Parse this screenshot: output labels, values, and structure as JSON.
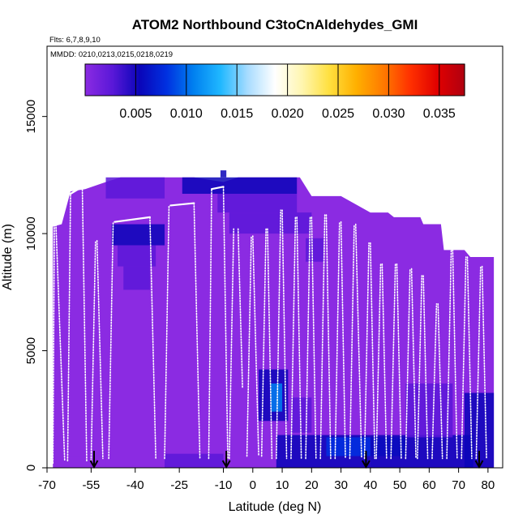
{
  "chart_data": {
    "type": "heatmap",
    "title": "ATOM2 Northbound C3toCnAldehydes_GMI",
    "flights_label": "Flts: 6,7,8,9,10",
    "dates_label": "MMDD: 0210,0213,0215,0218,0219",
    "xlabel": "Latitude (deg N)",
    "ylabel": "Altitude (m)",
    "xlim": [
      -70,
      85
    ],
    "ylim": [
      0,
      18000
    ],
    "x_ticks": [
      -70,
      -55,
      -40,
      -25,
      -10,
      0,
      10,
      20,
      30,
      40,
      50,
      60,
      70,
      80
    ],
    "y_ticks": [
      0,
      5000,
      10000,
      15000
    ],
    "colorbar": {
      "min": 0.0,
      "max": 0.0375,
      "ticks": [
        0.005,
        0.01,
        0.015,
        0.02,
        0.025,
        0.03,
        0.035
      ],
      "tick_labels": [
        "0.005",
        "0.010",
        "0.015",
        "0.020",
        "0.025",
        "0.030",
        "0.035"
      ],
      "colors": [
        "#8B2BE2",
        "#5A18D8",
        "#0A05B8",
        "#0030E0",
        "#0080F0",
        "#20B8FF",
        "#A8DCFF",
        "#FFFFFF",
        "#FFF6B0",
        "#FFE040",
        "#FFB000",
        "#FF7A00",
        "#FF3000",
        "#E00000",
        "#B00010"
      ]
    },
    "background_value": 0.0015,
    "curtain_top": [
      [
        -68,
        10300
      ],
      [
        -65,
        10400
      ],
      [
        -62,
        11800
      ],
      [
        -57,
        11900
      ],
      [
        -50,
        12200
      ],
      [
        -45,
        12400
      ],
      [
        -20,
        12400
      ],
      [
        -10,
        12200
      ],
      [
        -5,
        12400
      ],
      [
        16,
        12400
      ],
      [
        20,
        11600
      ],
      [
        30,
        11600
      ],
      [
        40,
        10900
      ],
      [
        46,
        10900
      ],
      [
        48,
        10700
      ],
      [
        57,
        10700
      ],
      [
        58,
        10400
      ],
      [
        64,
        10400
      ],
      [
        65,
        9300
      ],
      [
        72,
        9300
      ],
      [
        74,
        9000
      ],
      [
        82,
        9000
      ]
    ],
    "cells": [
      {
        "x": [
          -48,
          -30
        ],
        "y": [
          9500,
          10400
        ],
        "v": 0.0055
      },
      {
        "x": [
          -46,
          -33
        ],
        "y": [
          8600,
          9500
        ],
        "v": 0.0045
      },
      {
        "x": [
          -44,
          -35
        ],
        "y": [
          7600,
          8600
        ],
        "v": 0.0035
      },
      {
        "x": [
          -50,
          -30
        ],
        "y": [
          11500,
          12400
        ],
        "v": 0.0035
      },
      {
        "x": [
          -24,
          15
        ],
        "y": [
          11700,
          12400
        ],
        "v": 0.006
      },
      {
        "x": [
          -12,
          15
        ],
        "y": [
          10900,
          11700
        ],
        "v": 0.0045
      },
      {
        "x": [
          -8,
          20
        ],
        "y": [
          10000,
          10900
        ],
        "v": 0.003
      },
      {
        "x": [
          18,
          24
        ],
        "y": [
          8800,
          9800
        ],
        "v": 0.004
      },
      {
        "x": [
          -11,
          -9
        ],
        "y": [
          12400,
          12700
        ],
        "v": 0.007
      },
      {
        "x": [
          2,
          12
        ],
        "y": [
          2000,
          4200
        ],
        "v": 0.005
      },
      {
        "x": [
          6,
          10
        ],
        "y": [
          2400,
          3600
        ],
        "v": 0.012
      },
      {
        "x": [
          13,
          20
        ],
        "y": [
          1500,
          3000
        ],
        "v": 0.004
      },
      {
        "x": [
          8,
          40
        ],
        "y": [
          0,
          1400
        ],
        "v": 0.006
      },
      {
        "x": [
          25,
          52
        ],
        "y": [
          500,
          1300
        ],
        "v": 0.0075
      },
      {
        "x": [
          40,
          75
        ],
        "y": [
          0,
          1400
        ],
        "v": 0.0055
      },
      {
        "x": [
          52,
          68
        ],
        "y": [
          1300,
          3600
        ],
        "v": 0.0045
      },
      {
        "x": [
          72,
          82
        ],
        "y": [
          0,
          3200
        ],
        "v": 0.005
      },
      {
        "x": [
          -30,
          -10
        ],
        "y": [
          0,
          600
        ],
        "v": 0.0025
      },
      {
        "x": [
          -65,
          -50
        ],
        "y": [
          0,
          500
        ],
        "v": 0.002
      }
    ],
    "flight_tracks": [
      {
        "x": [
          -68,
          -67.5
        ],
        "y": [
          200,
          10500
        ]
      },
      {
        "x": [
          -67,
          -64
        ],
        "y": [
          10500,
          300
        ]
      },
      {
        "x": [
          -63,
          -62
        ],
        "y": [
          300,
          11700
        ]
      },
      {
        "x": [
          -62,
          -58
        ],
        "y": [
          11700,
          12000
        ]
      },
      {
        "x": [
          -58,
          -56.5
        ],
        "y": [
          12000,
          300
        ]
      },
      {
        "x": [
          -55,
          -53.5
        ],
        "y": [
          300,
          9700
        ]
      },
      {
        "x": [
          -53,
          -51
        ],
        "y": [
          9700,
          400
        ]
      },
      {
        "x": [
          -49,
          -47.5
        ],
        "y": [
          400,
          10500
        ]
      },
      {
        "x": [
          -47,
          -35
        ],
        "y": [
          10500,
          10700
        ]
      },
      {
        "x": [
          -35,
          -33
        ],
        "y": [
          10700,
          400
        ]
      },
      {
        "x": [
          -30,
          -28.5
        ],
        "y": [
          400,
          11200
        ]
      },
      {
        "x": [
          -28,
          -20
        ],
        "y": [
          11200,
          11300
        ]
      },
      {
        "x": [
          -20,
          -18
        ],
        "y": [
          11300,
          400
        ]
      },
      {
        "x": [
          -15,
          -14
        ],
        "y": [
          400,
          11900
        ]
      },
      {
        "x": [
          -14,
          -10
        ],
        "y": [
          11900,
          12000
        ]
      },
      {
        "x": [
          -10,
          -8.5
        ],
        "y": [
          12000,
          400
        ]
      },
      {
        "x": [
          -8,
          -6.5
        ],
        "y": [
          400,
          10200
        ]
      },
      {
        "x": [
          -5,
          -3.5
        ],
        "y": [
          10200,
          3400
        ]
      },
      {
        "x": [
          -2,
          -0.5
        ],
        "y": [
          500,
          9900
        ]
      },
      {
        "x": [
          0,
          2
        ],
        "y": [
          9900,
          500
        ]
      },
      {
        "x": [
          3,
          4.5
        ],
        "y": [
          500,
          10200
        ]
      },
      {
        "x": [
          5,
          6.5
        ],
        "y": [
          10200,
          400
        ]
      },
      {
        "x": [
          8,
          9.5
        ],
        "y": [
          400,
          11000
        ]
      },
      {
        "x": [
          10,
          11.5
        ],
        "y": [
          11000,
          400
        ]
      },
      {
        "x": [
          13,
          14.5
        ],
        "y": [
          400,
          10700
        ]
      },
      {
        "x": [
          15,
          16.5
        ],
        "y": [
          10700,
          400
        ]
      },
      {
        "x": [
          18,
          19.5
        ],
        "y": [
          400,
          10700
        ]
      },
      {
        "x": [
          20,
          21.5
        ],
        "y": [
          10700,
          400
        ]
      },
      {
        "x": [
          23,
          24.5
        ],
        "y": [
          400,
          10800
        ]
      },
      {
        "x": [
          25,
          26.5
        ],
        "y": [
          10800,
          400
        ]
      },
      {
        "x": [
          28,
          29.5
        ],
        "y": [
          400,
          10500
        ]
      },
      {
        "x": [
          30,
          31.5
        ],
        "y": [
          10500,
          400
        ]
      },
      {
        "x": [
          33,
          34.5
        ],
        "y": [
          400,
          10400
        ]
      },
      {
        "x": [
          35,
          37
        ],
        "y": [
          10400,
          400
        ]
      },
      {
        "x": [
          38,
          39.5
        ],
        "y": [
          400,
          9600
        ]
      },
      {
        "x": [
          40,
          41.5
        ],
        "y": [
          9600,
          400
        ]
      },
      {
        "x": [
          42,
          43.5
        ],
        "y": [
          400,
          8700
        ]
      },
      {
        "x": [
          44,
          45.5
        ],
        "y": [
          8700,
          400
        ]
      },
      {
        "x": [
          47,
          48.5
        ],
        "y": [
          400,
          8700
        ]
      },
      {
        "x": [
          49,
          50.5
        ],
        "y": [
          8700,
          400
        ]
      },
      {
        "x": [
          52,
          53.5
        ],
        "y": [
          400,
          8500
        ]
      },
      {
        "x": [
          54,
          55.5
        ],
        "y": [
          8500,
          400
        ]
      },
      {
        "x": [
          56,
          57.5
        ],
        "y": [
          400,
          8200
        ]
      },
      {
        "x": [
          58,
          59.5
        ],
        "y": [
          8200,
          400
        ]
      },
      {
        "x": [
          61,
          62.5
        ],
        "y": [
          400,
          7000
        ]
      },
      {
        "x": [
          63,
          64.5
        ],
        "y": [
          7000,
          400
        ]
      },
      {
        "x": [
          66,
          67.5
        ],
        "y": [
          400,
          9300
        ]
      },
      {
        "x": [
          68,
          69.5
        ],
        "y": [
          9300,
          400
        ]
      },
      {
        "x": [
          71,
          72.5
        ],
        "y": [
          400,
          9000
        ]
      },
      {
        "x": [
          73,
          74.5
        ],
        "y": [
          9000,
          400
        ]
      },
      {
        "x": [
          76,
          77.5
        ],
        "y": [
          400,
          8600
        ]
      },
      {
        "x": [
          78,
          79.5
        ],
        "y": [
          8600,
          400
        ]
      }
    ],
    "arrows_x": [
      -54,
      -9,
      38.5,
      77
    ]
  }
}
